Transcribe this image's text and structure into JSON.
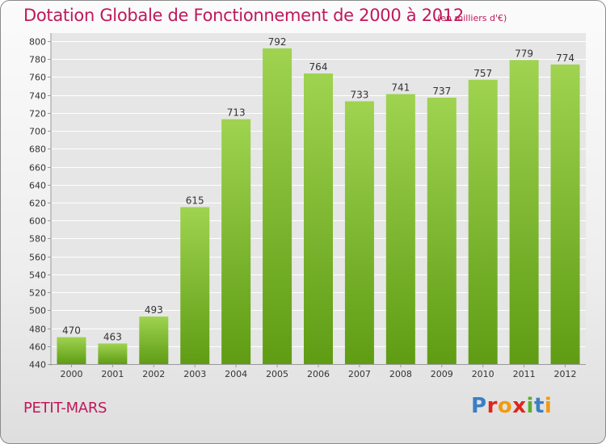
{
  "header": {
    "title": "Dotation Globale de Fonctionnement de 2000 à 2012",
    "unit_note": "(en milliers d'€)"
  },
  "footer": {
    "commune": "PETIT-MARS",
    "logo_text": "Proxiti",
    "logo_colors": [
      "#3a7fc4",
      "#e0251b",
      "#f19a12",
      "#e0251b",
      "#59b02c",
      "#3a7fc4",
      "#f19a12"
    ]
  },
  "chart_data": {
    "type": "bar",
    "title": "Dotation Globale de Fonctionnement de 2000 à 2012",
    "categories": [
      "2000",
      "2001",
      "2002",
      "2003",
      "2004",
      "2005",
      "2006",
      "2007",
      "2008",
      "2009",
      "2010",
      "2011",
      "2012"
    ],
    "values": [
      470,
      463,
      493,
      615,
      713,
      792,
      764,
      733,
      741,
      737,
      757,
      779,
      774
    ],
    "ylim": [
      440,
      800
    ],
    "yticks": [
      440,
      460,
      480,
      500,
      520,
      540,
      560,
      580,
      600,
      620,
      640,
      660,
      680,
      700,
      720,
      740,
      760,
      780,
      800
    ],
    "grid": true,
    "bar_color_top": "#9fd350",
    "bar_color_bottom": "#5f9c14",
    "grid_color": "#ffffff"
  }
}
